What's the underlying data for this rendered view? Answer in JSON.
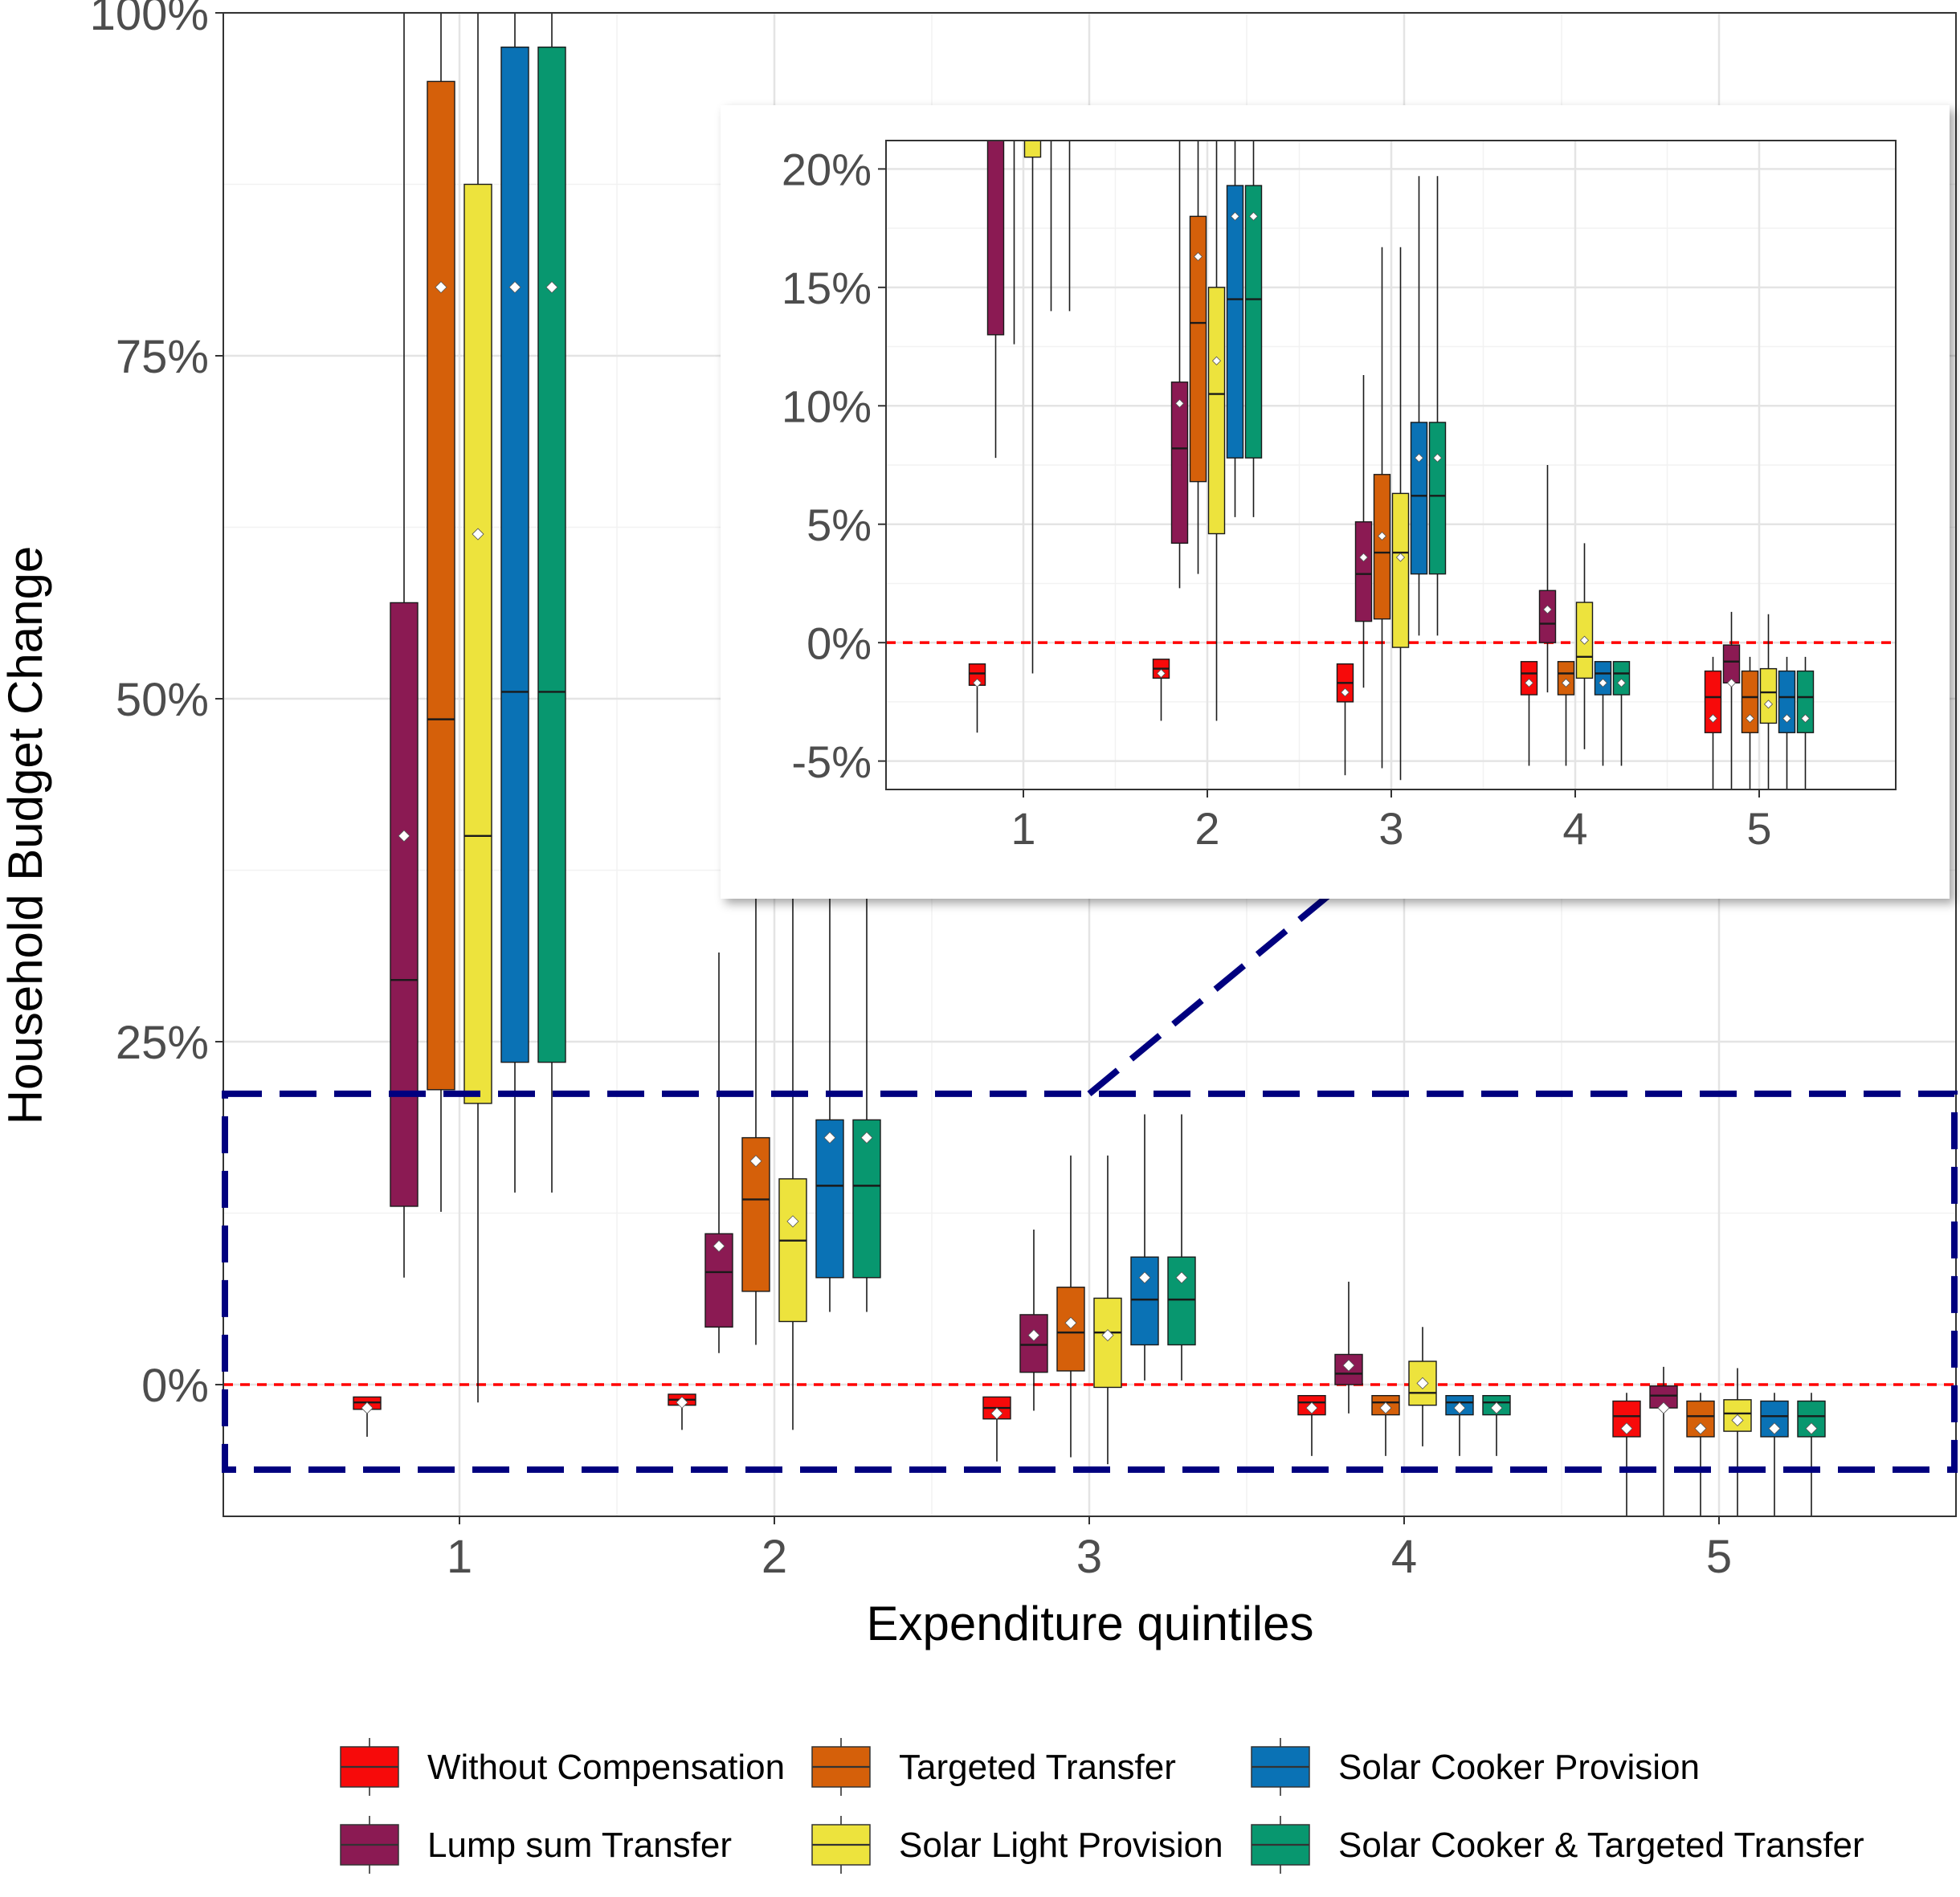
{
  "chart_data": {
    "type": "box",
    "xlabel": "Expenditure quintiles",
    "ylabel": "Household Budget Change",
    "categories": [
      "1",
      "2",
      "3",
      "4",
      "5"
    ],
    "x_tick_labels": [
      "1",
      "2",
      "3",
      "4",
      "5"
    ],
    "y_tick_labels": [
      "0%",
      "25%",
      "50%",
      "75%",
      "100%"
    ],
    "ylim": [
      -9.6,
      100
    ],
    "zero_line": 0,
    "legend_position": "bottom",
    "series": [
      {
        "name": "Without Compensation",
        "color": "#f70a0a",
        "boxes": [
          {
            "q1": -1.8,
            "median": -1.3,
            "q3": -0.9,
            "mean": -1.7,
            "wlo": -3.8,
            "whi": -0.9
          },
          {
            "q1": -1.5,
            "median": -1.1,
            "q3": -0.7,
            "mean": -1.3,
            "wlo": -3.3,
            "whi": -0.7
          },
          {
            "q1": -2.5,
            "median": -1.7,
            "q3": -0.9,
            "mean": -2.1,
            "wlo": -5.6,
            "whi": -0.9
          },
          {
            "q1": -2.2,
            "median": -1.3,
            "q3": -0.8,
            "mean": -1.7,
            "wlo": -5.2,
            "whi": -0.8
          },
          {
            "q1": -3.8,
            "median": -2.3,
            "q3": -1.2,
            "mean": -3.2,
            "wlo": -9.6,
            "whi": -0.6
          }
        ]
      },
      {
        "name": "Lump sum Transfer",
        "color": "#8b1a53",
        "boxes": [
          {
            "q1": 13.0,
            "median": 29.5,
            "q3": 57.0,
            "mean": 40.0,
            "wlo": 7.8,
            "whi": 100
          },
          {
            "q1": 4.2,
            "median": 8.2,
            "q3": 11.0,
            "mean": 10.1,
            "wlo": 2.3,
            "whi": 31.5
          },
          {
            "q1": 0.9,
            "median": 2.9,
            "q3": 5.1,
            "mean": 3.6,
            "wlo": -1.9,
            "whi": 11.3
          },
          {
            "q1": 0.0,
            "median": 0.8,
            "q3": 2.2,
            "mean": 1.4,
            "wlo": -2.1,
            "whi": 7.5
          },
          {
            "q1": -1.7,
            "median": -0.8,
            "q3": -0.1,
            "mean": -1.7,
            "wlo": -9.6,
            "whi": 1.3
          }
        ]
      },
      {
        "name": "Targeted Transfer",
        "color": "#d5600a",
        "boxes": [
          {
            "q1": 21.5,
            "median": 48.5,
            "q3": 95.0,
            "mean": 80.0,
            "wlo": 12.6,
            "whi": 100
          },
          {
            "q1": 6.8,
            "median": 13.5,
            "q3": 18.0,
            "mean": 16.3,
            "wlo": 2.9,
            "whi": 40.0
          },
          {
            "q1": 1.0,
            "median": 3.8,
            "q3": 7.1,
            "mean": 4.5,
            "wlo": -5.3,
            "whi": 16.7
          },
          {
            "q1": -2.2,
            "median": -1.3,
            "q3": -0.8,
            "mean": -1.7,
            "wlo": -5.2,
            "whi": -0.8
          },
          {
            "q1": -3.8,
            "median": -2.3,
            "q3": -1.2,
            "mean": -3.2,
            "wlo": -9.6,
            "whi": -0.6
          }
        ]
      },
      {
        "name": "Solar Light Provision",
        "color": "#ede33d",
        "boxes": [
          {
            "q1": 20.5,
            "median": 40.0,
            "q3": 87.5,
            "mean": 62.0,
            "wlo": -1.3,
            "whi": 100
          },
          {
            "q1": 4.6,
            "median": 10.5,
            "q3": 15.0,
            "mean": 11.9,
            "wlo": -3.3,
            "whi": 40.0
          },
          {
            "q1": -0.2,
            "median": 3.8,
            "q3": 6.3,
            "mean": 3.6,
            "wlo": -5.8,
            "whi": 16.7
          },
          {
            "q1": -1.5,
            "median": -0.6,
            "q3": 1.7,
            "mean": 0.1,
            "wlo": -4.5,
            "whi": 4.2
          },
          {
            "q1": -3.4,
            "median": -2.1,
            "q3": -1.1,
            "mean": -2.6,
            "wlo": -9.6,
            "whi": 1.2
          }
        ]
      },
      {
        "name": "Solar Cooker Provision",
        "color": "#0a72b5",
        "boxes": [
          {
            "q1": 23.5,
            "median": 50.5,
            "q3": 97.5,
            "mean": 80.0,
            "wlo": 14.0,
            "whi": 100
          },
          {
            "q1": 7.8,
            "median": 14.5,
            "q3": 19.3,
            "mean": 18.0,
            "wlo": 5.3,
            "whi": 40.0
          },
          {
            "q1": 2.9,
            "median": 6.2,
            "q3": 9.3,
            "mean": 7.8,
            "wlo": 0.3,
            "whi": 19.7
          },
          {
            "q1": -2.2,
            "median": -1.3,
            "q3": -0.8,
            "mean": -1.7,
            "wlo": -5.2,
            "whi": -0.8
          },
          {
            "q1": -3.8,
            "median": -2.3,
            "q3": -1.2,
            "mean": -3.2,
            "wlo": -9.6,
            "whi": -0.6
          }
        ]
      },
      {
        "name": "Solar Cooker & Targeted Transfer",
        "color": "#08976f",
        "boxes": [
          {
            "q1": 23.5,
            "median": 50.5,
            "q3": 97.5,
            "mean": 80.0,
            "wlo": 14.0,
            "whi": 100
          },
          {
            "q1": 7.8,
            "median": 14.5,
            "q3": 19.3,
            "mean": 18.0,
            "wlo": 5.3,
            "whi": 40.0
          },
          {
            "q1": 2.9,
            "median": 6.2,
            "q3": 9.3,
            "mean": 7.8,
            "wlo": 0.3,
            "whi": 19.7
          },
          {
            "q1": -2.2,
            "median": -1.3,
            "q3": -0.8,
            "mean": -1.7,
            "wlo": -5.2,
            "whi": -0.8
          },
          {
            "q1": -3.8,
            "median": -2.3,
            "q3": -1.2,
            "mean": -3.2,
            "wlo": -9.6,
            "whi": -0.6
          }
        ]
      }
    ],
    "inset": {
      "type": "box",
      "ylim": [
        -6.2,
        21.2
      ],
      "y_tick_labels": [
        "-5%",
        "0%",
        "5%",
        "10%",
        "15%",
        "20%"
      ],
      "x_tick_labels": [
        "1",
        "2",
        "3",
        "4",
        "5"
      ],
      "zoom_region": {
        "ymin": -6.2,
        "ymax": 21.2
      }
    }
  }
}
